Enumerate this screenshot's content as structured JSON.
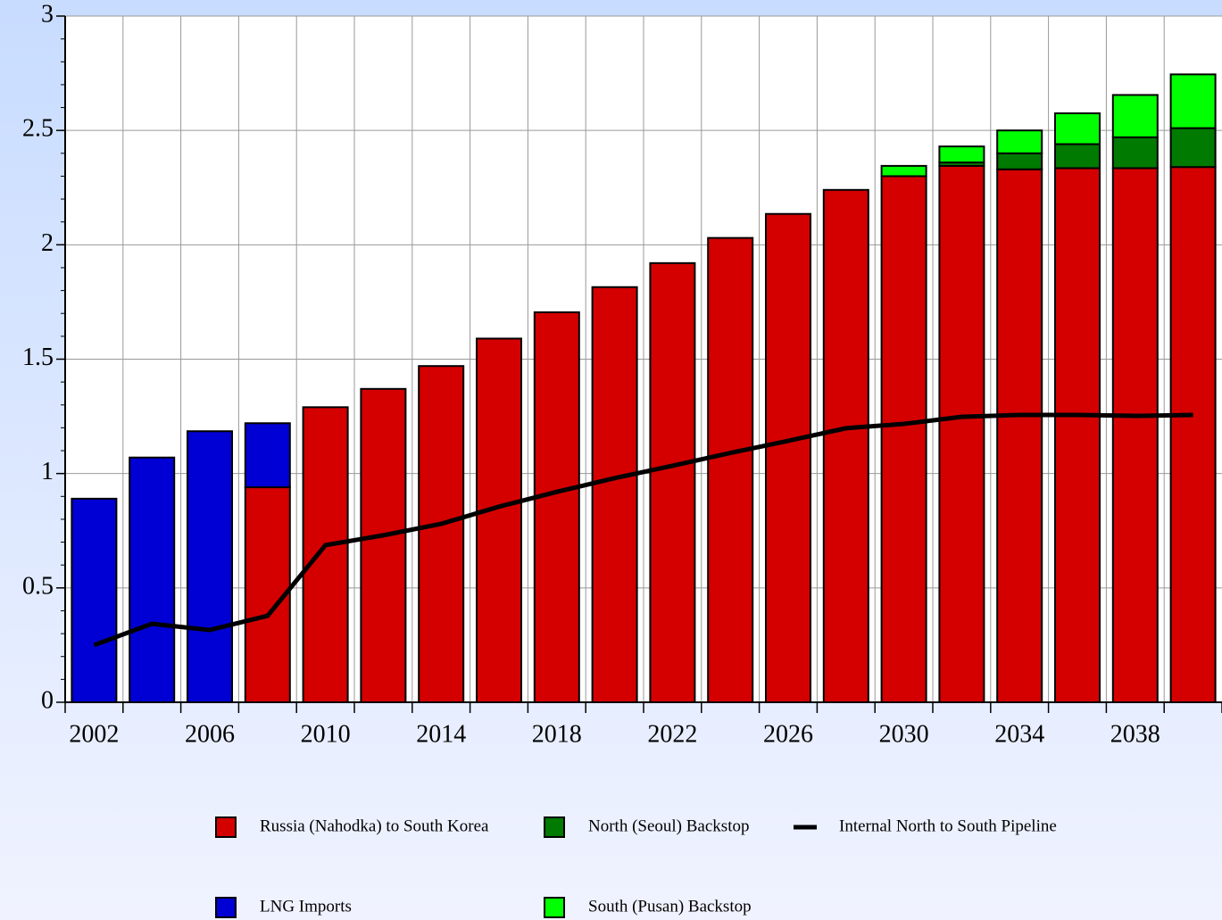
{
  "chart_data": {
    "type": "bar",
    "stacked": true,
    "categories": [
      "2002",
      null,
      "2006",
      null,
      "2010",
      null,
      "2014",
      null,
      "2018",
      null,
      "2022",
      null,
      "2026",
      null,
      "2030",
      null,
      "2034",
      null,
      "2038",
      null
    ],
    "series": [
      {
        "name": "Russia (Nahodka) to South Korea",
        "color": "#d40000",
        "type": "bar",
        "values": [
          0,
          0,
          0,
          0.94,
          1.29,
          1.37,
          1.47,
          1.59,
          1.705,
          1.815,
          1.92,
          2.03,
          2.135,
          2.24,
          2.3,
          2.345,
          2.33,
          2.335,
          2.335,
          2.34
        ]
      },
      {
        "name": "North (Seoul) Backstop",
        "color": "#007a00",
        "type": "bar",
        "values": [
          0,
          0,
          0,
          0,
          0,
          0,
          0,
          0,
          0,
          0,
          0,
          0,
          0,
          0,
          0,
          0.015,
          0.07,
          0.105,
          0.135,
          0.17
        ]
      },
      {
        "name": "Internal North to South Pipeline",
        "color": "#000000",
        "type": "line",
        "values": [
          0.25,
          0.343,
          0.316,
          0.378,
          0.687,
          0.73,
          0.78,
          0.855,
          0.92,
          0.98,
          1.034,
          1.09,
          1.143,
          1.198,
          1.217,
          1.248,
          1.256,
          1.256,
          1.252,
          1.256
        ]
      },
      {
        "name": "LNG Imports",
        "color": "#0000d4",
        "type": "bar",
        "values": [
          0.89,
          1.07,
          1.185,
          0.28,
          0,
          0,
          0,
          0,
          0,
          0,
          0,
          0,
          0,
          0,
          0,
          0,
          0,
          0,
          0,
          0
        ]
      },
      {
        "name": "South (Pusan) Backstop",
        "color": "#00ff00",
        "type": "bar",
        "values": [
          0,
          0,
          0,
          0,
          0,
          0,
          0,
          0,
          0,
          0,
          0,
          0,
          0,
          0,
          0.045,
          0.07,
          0.1,
          0.135,
          0.185,
          0.235
        ]
      }
    ],
    "ylim": [
      0,
      3
    ],
    "yticks": [
      0,
      0.5,
      1,
      1.5,
      2,
      2.5,
      3
    ],
    "grid": true,
    "legend": "bottom"
  }
}
